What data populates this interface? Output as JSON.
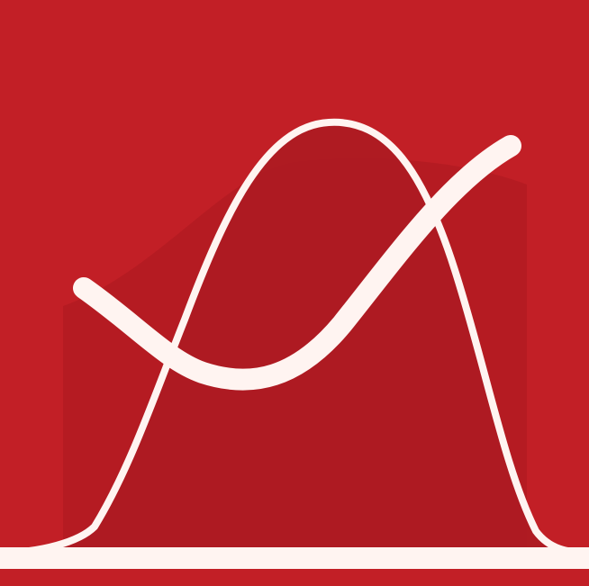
{
  "icon": {
    "semantic_name": "bell-curve-logo-icon",
    "background_color": "#c21f26",
    "shadow_color": "#ab1a21",
    "stroke_color": "#fff4f1"
  }
}
